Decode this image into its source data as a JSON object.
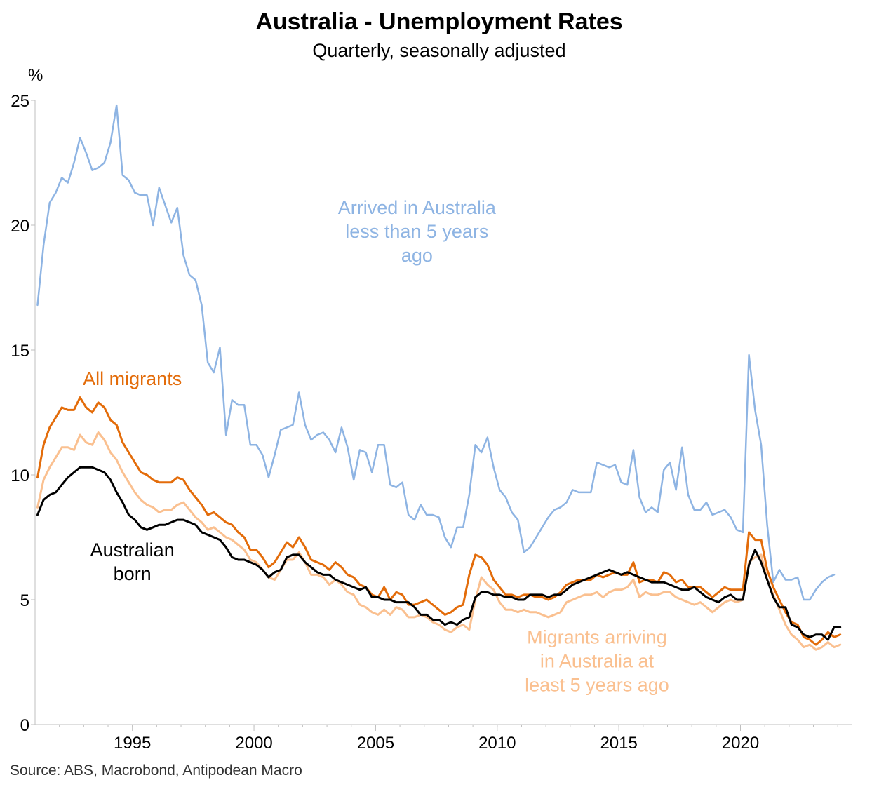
{
  "chart_data": {
    "type": "line",
    "title": "Australia - Unemployment Rates",
    "subtitle": "Quarterly, seasonally adjusted",
    "ylabel": "%",
    "source": "Source: ABS, Macrobond, Antipodean Macro",
    "xlim": [
      1991.0,
      2024.6
    ],
    "ylim": [
      0,
      25
    ],
    "x_ticks": [
      1995,
      2000,
      2005,
      2010,
      2015,
      2020
    ],
    "y_ticks": [
      0,
      5,
      10,
      15,
      20,
      25
    ],
    "x_start": 1991.1,
    "x_step": 0.25,
    "grid": false,
    "legend": "none",
    "series": [
      {
        "name": "Arrived in Australia less than 5 years ago",
        "label_lines": [
          "Arrived in Australia",
          "less than 5 years",
          "ago"
        ],
        "color": "#8EB4E3",
        "width": 2.5,
        "values": [
          16.8,
          19.2,
          20.9,
          21.3,
          21.9,
          21.7,
          22.5,
          23.5,
          22.9,
          22.2,
          22.3,
          22.5,
          23.3,
          24.8,
          22.0,
          21.8,
          21.3,
          21.2,
          21.2,
          20.0,
          21.5,
          20.8,
          20.1,
          20.7,
          18.8,
          18.0,
          17.8,
          16.8,
          14.5,
          14.1,
          15.1,
          11.6,
          13.0,
          12.8,
          12.8,
          11.2,
          11.2,
          10.8,
          9.9,
          10.8,
          11.8,
          11.9,
          12.0,
          13.3,
          12.0,
          11.4,
          11.6,
          11.7,
          11.4,
          10.9,
          11.9,
          11.1,
          9.8,
          11.0,
          10.9,
          10.1,
          11.2,
          11.2,
          9.6,
          9.5,
          9.7,
          8.4,
          8.2,
          8.8,
          8.4,
          8.4,
          8.3,
          7.5,
          7.1,
          7.9,
          7.9,
          9.2,
          11.2,
          10.9,
          11.5,
          10.3,
          9.4,
          9.1,
          8.5,
          8.2,
          6.9,
          7.1,
          7.5,
          7.9,
          8.3,
          8.6,
          8.7,
          8.9,
          9.4,
          9.3,
          9.3,
          9.3,
          10.5,
          10.4,
          10.3,
          10.4,
          9.7,
          9.6,
          11.0,
          9.1,
          8.5,
          8.7,
          8.5,
          10.2,
          10.5,
          9.4,
          11.1,
          9.2,
          8.6,
          8.6,
          8.9,
          8.4,
          8.5,
          8.6,
          8.3,
          7.8,
          7.7,
          14.8,
          12.6,
          11.2,
          8.0,
          5.7,
          6.2,
          5.8,
          5.8,
          5.9,
          5.0,
          5.0,
          5.4,
          5.7,
          5.9,
          6.0
        ]
      },
      {
        "name": "All migrants",
        "label_lines": [
          "All migrants"
        ],
        "color": "#E36C0A",
        "width": 3,
        "values": [
          9.9,
          11.2,
          11.9,
          12.3,
          12.7,
          12.6,
          12.6,
          13.1,
          12.7,
          12.5,
          12.9,
          12.7,
          12.2,
          12.0,
          11.3,
          10.9,
          10.5,
          10.1,
          10.0,
          9.8,
          9.7,
          9.7,
          9.7,
          9.9,
          9.8,
          9.4,
          9.1,
          8.8,
          8.4,
          8.5,
          8.3,
          8.1,
          8.0,
          7.7,
          7.5,
          7.0,
          7.0,
          6.7,
          6.3,
          6.5,
          6.9,
          7.3,
          7.1,
          7.5,
          7.1,
          6.6,
          6.5,
          6.4,
          6.2,
          6.5,
          6.3,
          6.0,
          5.9,
          5.6,
          5.5,
          5.2,
          5.1,
          5.5,
          5.0,
          5.3,
          5.2,
          4.8,
          4.8,
          4.9,
          5.0,
          4.8,
          4.6,
          4.4,
          4.5,
          4.7,
          4.8,
          6.0,
          6.8,
          6.7,
          6.4,
          5.8,
          5.5,
          5.2,
          5.2,
          5.1,
          5.2,
          5.2,
          5.1,
          5.1,
          5.0,
          5.1,
          5.3,
          5.6,
          5.7,
          5.8,
          5.8,
          5.8,
          6.0,
          5.9,
          6.0,
          6.1,
          6.0,
          6.0,
          6.5,
          5.7,
          5.8,
          5.8,
          5.7,
          6.1,
          6.0,
          5.7,
          5.8,
          5.5,
          5.5,
          5.5,
          5.3,
          5.1,
          5.3,
          5.5,
          5.4,
          5.4,
          5.4,
          7.7,
          7.4,
          7.4,
          6.2,
          5.5,
          5.0,
          4.5,
          4.1,
          4.0,
          3.5,
          3.4,
          3.2,
          3.4,
          3.7,
          3.5,
          3.6
        ]
      },
      {
        "name": "Migrants arriving in Australia at least 5 years ago",
        "label_lines": [
          "Migrants arriving",
          "in Australia at",
          "least 5 years ago"
        ],
        "color": "#FAC090",
        "width": 3,
        "values": [
          8.7,
          9.8,
          10.3,
          10.7,
          11.1,
          11.1,
          11.0,
          11.6,
          11.3,
          11.2,
          11.7,
          11.4,
          10.9,
          10.6,
          10.1,
          9.7,
          9.3,
          9.0,
          8.8,
          8.7,
          8.5,
          8.6,
          8.6,
          8.8,
          8.9,
          8.6,
          8.3,
          8.1,
          7.8,
          7.9,
          7.7,
          7.5,
          7.4,
          7.2,
          7.0,
          6.6,
          6.5,
          6.2,
          5.9,
          5.8,
          6.2,
          6.6,
          6.6,
          6.9,
          6.5,
          6.0,
          6.0,
          5.9,
          5.6,
          5.8,
          5.6,
          5.3,
          5.2,
          4.8,
          4.7,
          4.5,
          4.4,
          4.6,
          4.4,
          4.7,
          4.6,
          4.3,
          4.3,
          4.4,
          4.3,
          4.1,
          4.0,
          3.8,
          3.7,
          3.9,
          4.0,
          3.8,
          5.0,
          5.9,
          5.6,
          5.4,
          4.9,
          4.6,
          4.6,
          4.5,
          4.6,
          4.5,
          4.5,
          4.4,
          4.3,
          4.4,
          4.5,
          4.9,
          5.0,
          5.1,
          5.2,
          5.2,
          5.3,
          5.1,
          5.3,
          5.4,
          5.4,
          5.5,
          5.8,
          5.1,
          5.3,
          5.2,
          5.2,
          5.3,
          5.3,
          5.1,
          5.0,
          4.9,
          4.8,
          4.9,
          4.7,
          4.5,
          4.7,
          4.9,
          5.0,
          4.9,
          5.0,
          6.5,
          6.7,
          6.8,
          5.8,
          5.2,
          4.6,
          4.0,
          3.6,
          3.4,
          3.1,
          3.2,
          3.0,
          3.1,
          3.3,
          3.1,
          3.2
        ]
      },
      {
        "name": "Australian born",
        "label_lines": [
          "Australian",
          "born"
        ],
        "color": "#000000",
        "width": 3,
        "values": [
          8.4,
          9.0,
          9.2,
          9.3,
          9.6,
          9.9,
          10.1,
          10.3,
          10.3,
          10.3,
          10.2,
          10.1,
          9.8,
          9.3,
          8.9,
          8.4,
          8.2,
          7.9,
          7.8,
          7.9,
          8.0,
          8.0,
          8.1,
          8.2,
          8.2,
          8.1,
          8.0,
          7.7,
          7.6,
          7.5,
          7.4,
          7.1,
          6.7,
          6.6,
          6.6,
          6.5,
          6.4,
          6.2,
          5.9,
          6.1,
          6.2,
          6.7,
          6.8,
          6.8,
          6.5,
          6.3,
          6.1,
          6.0,
          6.0,
          5.8,
          5.7,
          5.6,
          5.5,
          5.4,
          5.5,
          5.1,
          5.1,
          5.0,
          5.0,
          4.9,
          4.9,
          4.9,
          4.7,
          4.4,
          4.4,
          4.2,
          4.2,
          4.0,
          4.1,
          4.0,
          4.2,
          4.3,
          5.1,
          5.3,
          5.3,
          5.2,
          5.2,
          5.1,
          5.1,
          5.0,
          5.0,
          5.2,
          5.2,
          5.2,
          5.1,
          5.2,
          5.2,
          5.4,
          5.6,
          5.7,
          5.8,
          5.9,
          6.0,
          6.1,
          6.2,
          6.1,
          6.0,
          6.1,
          6.0,
          5.9,
          5.8,
          5.7,
          5.7,
          5.7,
          5.6,
          5.5,
          5.4,
          5.4,
          5.5,
          5.3,
          5.1,
          5.0,
          4.9,
          5.1,
          5.2,
          5.0,
          5.0,
          6.4,
          7.0,
          6.5,
          5.8,
          5.1,
          4.7,
          4.7,
          4.0,
          3.9,
          3.6,
          3.5,
          3.6,
          3.6,
          3.4,
          3.9,
          3.9
        ]
      }
    ]
  }
}
